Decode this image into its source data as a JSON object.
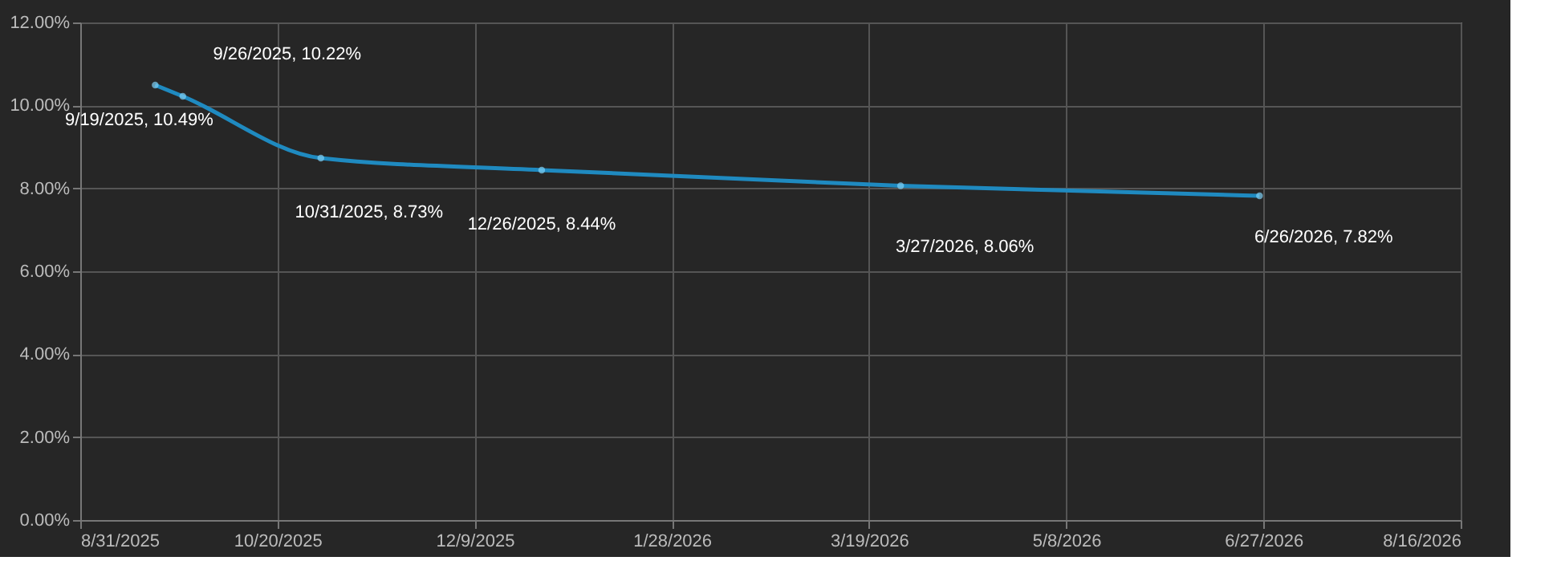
{
  "chart_data": {
    "type": "line",
    "x": [
      "2025-09-19",
      "2025-09-26",
      "2025-10-31",
      "2025-12-26",
      "2026-03-27",
      "2026-06-26"
    ],
    "series": [
      {
        "color": "#1f8ac0",
        "values": [
          10.49,
          10.22,
          8.73,
          8.44,
          8.06,
          7.82
        ],
        "value_labels": [
          "9/19/2025, 10.49%",
          "9/26/2025, 10.22%",
          "10/31/2025, 8.73%",
          "12/26/2025, 8.44%",
          "3/27/2026, 8.06%",
          "6/26/2026, 7.82%"
        ]
      }
    ],
    "xlim": [
      "2025-08-31",
      "2026-08-16"
    ],
    "xticks": [
      {
        "value": "2025-08-31",
        "label": "8/31/2025"
      },
      {
        "value": "2025-10-20",
        "label": "10/20/2025"
      },
      {
        "value": "2025-12-09",
        "label": "12/9/2025"
      },
      {
        "value": "2026-01-28",
        "label": "1/28/2026"
      },
      {
        "value": "2026-03-19",
        "label": "3/19/2026"
      },
      {
        "value": "2026-05-08",
        "label": "5/8/2026"
      },
      {
        "value": "2026-06-27",
        "label": "6/27/2026"
      },
      {
        "value": "2026-08-16",
        "label": "8/16/2026"
      }
    ],
    "ylim": [
      0,
      12
    ],
    "yticks": [
      {
        "value": 0,
        "label": "0.00%"
      },
      {
        "value": 2,
        "label": "2.00%"
      },
      {
        "value": 4,
        "label": "4.00%"
      },
      {
        "value": 6,
        "label": "6.00%"
      },
      {
        "value": 8,
        "label": "8.00%"
      },
      {
        "value": 10,
        "label": "10.00%"
      },
      {
        "value": 12,
        "label": "12.00%"
      }
    ],
    "grid": true,
    "marker": "circle",
    "line_style": "solid"
  }
}
